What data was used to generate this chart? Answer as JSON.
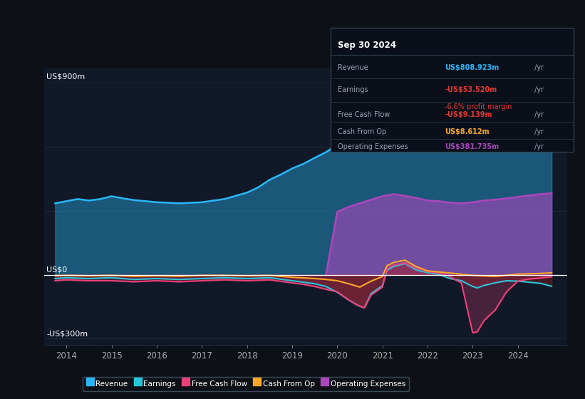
{
  "bg_color": "#0d1117",
  "plot_bg_color": "#111827",
  "ylabel_top": "US$900m",
  "ylabel_zero": "US$0",
  "ylabel_bottom": "-US$300m",
  "ylim": [
    -330,
    970
  ],
  "xlim_start": 2013.5,
  "xlim_end": 2025.1,
  "grid_color": "#2a3a4a",
  "colors": {
    "revenue": "#29b6f6",
    "earnings": "#26c6da",
    "free_cash_flow": "#ec407a",
    "cash_from_op": "#ffa726",
    "operating_expenses": "#ab47bc"
  },
  "legend_items": [
    "Revenue",
    "Earnings",
    "Free Cash Flow",
    "Cash From Op",
    "Operating Expenses"
  ],
  "infobox": {
    "date": "Sep 30 2024",
    "rows": [
      {
        "label": "Revenue",
        "value": "US$808.923m",
        "value_color": "#29b6f6",
        "suffix": " /yr",
        "extra": null,
        "extra_color": null
      },
      {
        "label": "Earnings",
        "value": "-US$53.520m",
        "value_color": "#e53935",
        "suffix": " /yr",
        "extra": "-6.6% profit margin",
        "extra_color": "#e53935"
      },
      {
        "label": "Free Cash Flow",
        "value": "-US$9.139m",
        "value_color": "#e53935",
        "suffix": " /yr",
        "extra": null,
        "extra_color": null
      },
      {
        "label": "Cash From Op",
        "value": "US$8.612m",
        "value_color": "#ffa726",
        "suffix": " /yr",
        "extra": null,
        "extra_color": null
      },
      {
        "label": "Operating Expenses",
        "value": "US$381.735m",
        "value_color": "#ab47bc",
        "suffix": " /yr",
        "extra": null,
        "extra_color": null
      }
    ]
  },
  "revenue_x": [
    2013.75,
    2014.0,
    2014.25,
    2014.5,
    2014.75,
    2015.0,
    2015.25,
    2015.5,
    2015.75,
    2016.0,
    2016.5,
    2017.0,
    2017.5,
    2018.0,
    2018.25,
    2018.5,
    2018.75,
    2019.0,
    2019.25,
    2019.5,
    2019.75,
    2020.0,
    2020.25,
    2020.5,
    2020.75,
    2021.0,
    2021.25,
    2021.5,
    2021.75,
    2022.0,
    2022.25,
    2022.5,
    2022.75,
    2023.0,
    2023.25,
    2023.5,
    2023.75,
    2024.0,
    2024.25,
    2024.5,
    2024.75
  ],
  "revenue_y": [
    335,
    345,
    355,
    348,
    355,
    368,
    358,
    350,
    345,
    340,
    335,
    340,
    355,
    385,
    410,
    445,
    470,
    498,
    520,
    548,
    575,
    608,
    638,
    668,
    710,
    758,
    800,
    842,
    868,
    878,
    885,
    862,
    838,
    818,
    808,
    792,
    788,
    792,
    800,
    805,
    809
  ],
  "opex_x": [
    2019.75,
    2020.0,
    2020.25,
    2020.5,
    2020.75,
    2021.0,
    2021.25,
    2021.5,
    2021.75,
    2022.0,
    2022.25,
    2022.5,
    2022.75,
    2023.0,
    2023.25,
    2023.5,
    2023.75,
    2024.0,
    2024.25,
    2024.5,
    2024.75
  ],
  "opex_y": [
    0,
    295,
    318,
    335,
    352,
    368,
    378,
    370,
    360,
    348,
    345,
    338,
    335,
    340,
    348,
    352,
    358,
    365,
    372,
    378,
    382
  ],
  "earnings_x": [
    2013.75,
    2014.0,
    2014.5,
    2015.0,
    2015.5,
    2016.0,
    2016.5,
    2017.0,
    2017.5,
    2018.0,
    2018.5,
    2019.0,
    2019.25,
    2019.5,
    2019.75,
    2020.0,
    2020.25,
    2020.5,
    2020.6,
    2020.75,
    2021.0,
    2021.1,
    2021.25,
    2021.5,
    2021.75,
    2022.0,
    2022.25,
    2022.5,
    2022.75,
    2023.0,
    2023.1,
    2023.25,
    2023.5,
    2023.75,
    2024.0,
    2024.25,
    2024.5,
    2024.75
  ],
  "earnings_y": [
    -18,
    -14,
    -18,
    -14,
    -22,
    -18,
    -22,
    -18,
    -14,
    -18,
    -14,
    -28,
    -35,
    -42,
    -55,
    -82,
    -118,
    -148,
    -155,
    -88,
    -52,
    20,
    38,
    52,
    22,
    10,
    2,
    -18,
    -28,
    -55,
    -62,
    -50,
    -38,
    -28,
    -30,
    -35,
    -40,
    -54
  ],
  "fcf_x": [
    2013.75,
    2014.0,
    2014.5,
    2015.0,
    2015.5,
    2016.0,
    2016.5,
    2017.0,
    2017.5,
    2018.0,
    2018.5,
    2019.0,
    2019.25,
    2019.5,
    2019.75,
    2020.0,
    2020.2,
    2020.4,
    2020.6,
    2020.75,
    2021.0,
    2021.1,
    2021.25,
    2021.5,
    2021.75,
    2022.0,
    2022.25,
    2022.5,
    2022.6,
    2022.75,
    2023.0,
    2023.1,
    2023.25,
    2023.5,
    2023.75,
    2024.0,
    2024.25,
    2024.5,
    2024.75
  ],
  "fcf_y": [
    -28,
    -24,
    -28,
    -28,
    -33,
    -28,
    -33,
    -28,
    -24,
    -28,
    -24,
    -38,
    -45,
    -55,
    -68,
    -80,
    -110,
    -138,
    -155,
    -95,
    -58,
    28,
    45,
    55,
    30,
    15,
    8,
    -8,
    -22,
    -38,
    -272,
    -268,
    -215,
    -165,
    -80,
    -30,
    -20,
    -15,
    -9
  ],
  "cop_x": [
    2013.75,
    2014.0,
    2014.5,
    2015.0,
    2015.5,
    2016.0,
    2016.5,
    2017.0,
    2017.5,
    2018.0,
    2018.5,
    2019.0,
    2019.5,
    2019.75,
    2020.0,
    2020.25,
    2020.5,
    2020.75,
    2021.0,
    2021.1,
    2021.25,
    2021.5,
    2021.75,
    2022.0,
    2022.5,
    2023.0,
    2023.5,
    2024.0,
    2024.5,
    2024.75
  ],
  "cop_y": [
    -4,
    -3,
    -5,
    -3,
    -7,
    -5,
    -7,
    -3,
    -3,
    -5,
    -3,
    -12,
    -18,
    -22,
    -28,
    -42,
    -58,
    -30,
    -8,
    42,
    58,
    68,
    38,
    18,
    8,
    -3,
    -8,
    3,
    6,
    9
  ]
}
